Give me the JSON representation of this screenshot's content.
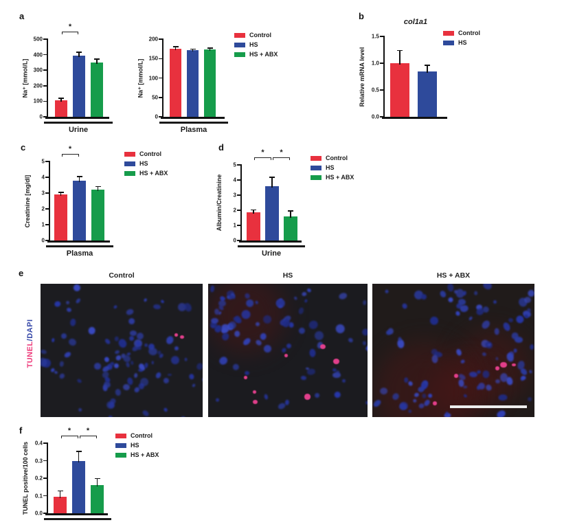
{
  "colors": {
    "control": "#E8313E",
    "hs": "#2E4A9B",
    "hs_abx": "#169C4B",
    "axis": "#111111",
    "tunel_text": "#EE3D7C",
    "dapi_text": "#3648A8",
    "tunel_spot": "#EC4191",
    "scale_bar": "#EDEDED"
  },
  "panels": {
    "a": "a",
    "b": "b",
    "c": "c",
    "d": "d",
    "e": "e",
    "f": "f"
  },
  "legends": {
    "a": [
      {
        "key": "control",
        "label": "Control"
      },
      {
        "key": "hs",
        "label": "HS"
      },
      {
        "key": "hs_abx",
        "label": "HS + ABX"
      }
    ],
    "b": [
      {
        "key": "control",
        "label": "Control"
      },
      {
        "key": "hs",
        "label": "HS"
      }
    ],
    "c": [
      {
        "key": "control",
        "label": "Control"
      },
      {
        "key": "hs",
        "label": "HS"
      },
      {
        "key": "hs_abx",
        "label": "HS + ABX"
      }
    ],
    "d": [
      {
        "key": "control",
        "label": "Control"
      },
      {
        "key": "hs",
        "label": "HS"
      },
      {
        "key": "hs_abx",
        "label": "HS + ABX"
      }
    ],
    "f": [
      {
        "key": "control",
        "label": "Control"
      },
      {
        "key": "hs",
        "label": "HS"
      },
      {
        "key": "hs_abx",
        "label": "HS + ABX"
      }
    ]
  },
  "chart_data": [
    {
      "id": "a_urine",
      "type": "bar",
      "title": "",
      "ylabel": "Na⁺ [mmol/L]",
      "xlabel": "Urine",
      "xunderline": true,
      "categories": [
        "Control",
        "HS",
        "HS + ABX"
      ],
      "color_keys": [
        "control",
        "hs",
        "hs_abx"
      ],
      "values": [
        105,
        392,
        350
      ],
      "errors": [
        12,
        20,
        18
      ],
      "ylim": [
        0,
        500
      ],
      "yticks": [
        "0",
        "100",
        "200",
        "300",
        "400",
        "500"
      ],
      "sig": [
        [
          0,
          1
        ]
      ],
      "sig_label": "*"
    },
    {
      "id": "a_plasma",
      "type": "bar",
      "title": "",
      "ylabel": "Na⁺ [mmol/L]",
      "xlabel": "Plasma",
      "xunderline": true,
      "categories": [
        "Control",
        "HS",
        "HS + ABX"
      ],
      "color_keys": [
        "control",
        "hs",
        "hs_abx"
      ],
      "values": [
        176,
        171,
        174
      ],
      "errors": [
        3,
        2,
        2
      ],
      "ylim": [
        0,
        200
      ],
      "yticks": [
        "0",
        "50",
        "100",
        "150",
        "200"
      ],
      "sig": [],
      "sig_label": "*"
    },
    {
      "id": "b",
      "type": "bar",
      "title": "col1a1",
      "ylabel": "Relative mRNA level",
      "xlabel": "",
      "xunderline": false,
      "categories": [
        "Control",
        "HS"
      ],
      "color_keys": [
        "control",
        "hs"
      ],
      "values": [
        1.0,
        0.85
      ],
      "errors": [
        0.23,
        0.1
      ],
      "ylim": [
        0,
        1.5
      ],
      "yticks": [
        "0.0",
        "0.5",
        "1.0",
        "1.5"
      ],
      "sig": [],
      "sig_label": "*"
    },
    {
      "id": "c",
      "type": "bar",
      "title": "",
      "ylabel": "Creatinine [mg/dl]",
      "xlabel": "Plasma",
      "xunderline": true,
      "categories": [
        "Control",
        "HS",
        "HS + ABX"
      ],
      "color_keys": [
        "control",
        "hs",
        "hs_abx"
      ],
      "values": [
        2.9,
        3.8,
        3.2
      ],
      "errors": [
        0.12,
        0.22,
        0.18
      ],
      "ylim": [
        0,
        5
      ],
      "yticks": [
        "0",
        "1",
        "2",
        "3",
        "4",
        "5"
      ],
      "sig": [
        [
          0,
          1
        ]
      ],
      "sig_label": "*"
    },
    {
      "id": "d",
      "type": "bar",
      "title": "",
      "ylabel": "Albumin/Creatinine",
      "xlabel": "Urine",
      "xunderline": true,
      "categories": [
        "Control",
        "HS",
        "HS + ABX"
      ],
      "color_keys": [
        "control",
        "hs",
        "hs_abx"
      ],
      "values": [
        1.85,
        3.6,
        1.6
      ],
      "errors": [
        0.15,
        0.55,
        0.32
      ],
      "ylim": [
        0,
        5
      ],
      "yticks": [
        "0",
        "1",
        "2",
        "3",
        "4",
        "5"
      ],
      "sig": [
        [
          0,
          1
        ],
        [
          1,
          2
        ]
      ],
      "sig_label": "*"
    },
    {
      "id": "f",
      "type": "bar",
      "title": "",
      "ylabel": "TUNEL positive/100 cells",
      "xlabel": "",
      "xunderline": true,
      "categories": [
        "Control",
        "HS",
        "HS + ABX"
      ],
      "color_keys": [
        "control",
        "hs",
        "hs_abx"
      ],
      "values": [
        0.095,
        0.3,
        0.16
      ],
      "errors": [
        0.03,
        0.05,
        0.035
      ],
      "ylim": [
        0,
        0.4
      ],
      "yticks": [
        "0.0",
        "0.1",
        "0.2",
        "0.3",
        "0.4"
      ],
      "sig": [
        [
          0,
          1
        ],
        [
          1,
          2
        ]
      ],
      "sig_label": "*"
    }
  ],
  "panel_e": {
    "row_label": {
      "tunel": "TUNEL",
      "slash_dapi": "/DAPI"
    },
    "nucleus_colors": [
      "#2636A8",
      "#3142BC",
      "#1F2C88",
      "#3949C0",
      "#2A3A9E"
    ],
    "images": [
      {
        "label": "Control",
        "bg": "#1C1C20",
        "nuclei": 92,
        "tunel_spots": 2,
        "red_haze": 0,
        "seed": 11,
        "scale_bar": false
      },
      {
        "label": "HS",
        "bg": "#1B1B1F",
        "nuclei": 82,
        "tunel_spots": 7,
        "red_haze": 1,
        "seed": 22,
        "scale_bar": false
      },
      {
        "label": "HS + ABX",
        "bg": "#201B1A",
        "nuclei": 96,
        "tunel_spots": 5,
        "red_haze": 4,
        "seed": 33,
        "scale_bar": true
      }
    ]
  }
}
